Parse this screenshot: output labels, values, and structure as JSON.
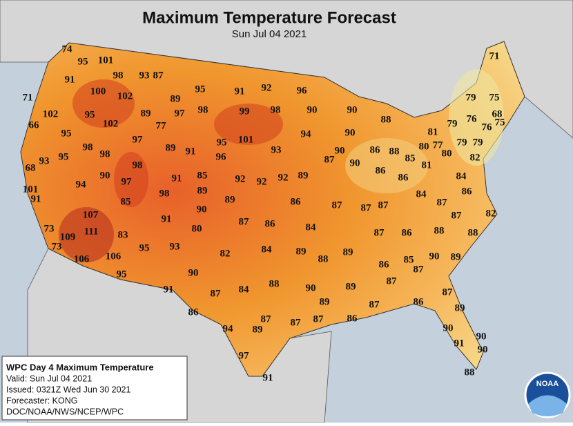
{
  "header": {
    "title": "Maximum Temperature Forecast",
    "subtitle": "Sun Jul 04 2021"
  },
  "temperatures": [
    74,
    95,
    101,
    91,
    98,
    93,
    87,
    100,
    102,
    89,
    95,
    91,
    92,
    96,
    71,
    79,
    75,
    71,
    102,
    95,
    89,
    97,
    98,
    99,
    98,
    90,
    90,
    68,
    76,
    76,
    75,
    66,
    102,
    77,
    88,
    94,
    90,
    81,
    79,
    95,
    97,
    101,
    95,
    80,
    77,
    80,
    79,
    79,
    98,
    89,
    91,
    93,
    86,
    88,
    85,
    93,
    95,
    98,
    96,
    87,
    90,
    90,
    81,
    82,
    68,
    98,
    86,
    86,
    84,
    90,
    94,
    97,
    91,
    85,
    92,
    92,
    92,
    89,
    86,
    101,
    91,
    98,
    89,
    89,
    86,
    87,
    87,
    87,
    84,
    87,
    82,
    85,
    90,
    107,
    91,
    80,
    87,
    86,
    84,
    87,
    73,
    111,
    87,
    86,
    88,
    88,
    109,
    83,
    73,
    82,
    84,
    89,
    89,
    93,
    95,
    106,
    106,
    88,
    86,
    85,
    87,
    90,
    89,
    95,
    90,
    87,
    84,
    88,
    90,
    89,
    91,
    87,
    87,
    89,
    87,
    86,
    89,
    86,
    87,
    87,
    87,
    86,
    94,
    89,
    90,
    90,
    91,
    90,
    97,
    91,
    88
  ],
  "info_box": {
    "lines": [
      "WPC Day 4 Maximum Temperature",
      "Valid: Sun Jul 04 2021",
      "Issued: 0321Z Wed Jun 30 2021",
      "Forecaster: KONG",
      "DOC/NOAA/NWS/NCEP/WPC"
    ]
  },
  "logo": {
    "text": "NOAA"
  }
}
